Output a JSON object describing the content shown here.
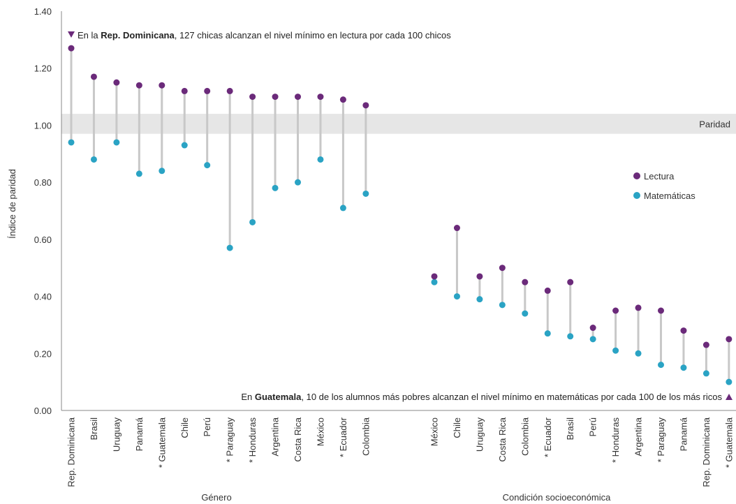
{
  "chart_data": {
    "type": "scatter",
    "ylabel": "Índice de paridad",
    "ylim": [
      0,
      1.4
    ],
    "yticks": [
      "0.00",
      "0.20",
      "0.40",
      "0.60",
      "0.80",
      "1.00",
      "1.20",
      "1.40"
    ],
    "grid": false,
    "legend_position": "right",
    "parity_band": {
      "label": "Paridad",
      "from": 0.97,
      "to": 1.04
    },
    "colors": {
      "lectura": "#6b2a7a",
      "matematicas": "#2aa3c4",
      "connector": "#c8c8c8",
      "band": "#e6e6e6",
      "axis": "#888888",
      "marker": "#6b2a7a"
    },
    "series": [
      {
        "name": "Lectura",
        "key": "lectura"
      },
      {
        "name": "Matemáticas",
        "key": "matematicas"
      }
    ],
    "groups": [
      {
        "label": "Género",
        "categories": [
          "Rep. Dominicana",
          "Brasil",
          "Uruguay",
          "Panamá",
          "* Guatemala",
          "Chile",
          "Perú",
          "* Paraguay",
          "* Honduras",
          "Argentina",
          "Costa Rica",
          "México",
          "* Ecuador",
          "Colombia"
        ],
        "lectura": [
          1.27,
          1.17,
          1.15,
          1.14,
          1.14,
          1.12,
          1.12,
          1.12,
          1.1,
          1.1,
          1.1,
          1.1,
          1.09,
          1.07
        ],
        "matematicas": [
          0.94,
          0.88,
          0.94,
          0.83,
          0.84,
          0.93,
          0.86,
          0.57,
          0.66,
          0.78,
          0.8,
          0.88,
          0.71,
          0.76
        ]
      },
      {
        "label": "Condición socioeconómica",
        "categories": [
          "México",
          "Chile",
          "Uruguay",
          "Costa Rica",
          "Colombia",
          "* Ecuador",
          "Brasil",
          "Perú",
          "* Honduras",
          "Argentina",
          "* Paraguay",
          "Panamá",
          "Rep. Dominicana",
          "* Guatemala"
        ],
        "lectura": [
          0.47,
          0.64,
          0.47,
          0.5,
          0.45,
          0.42,
          0.45,
          0.29,
          0.35,
          0.36,
          0.35,
          0.28,
          0.23,
          0.25
        ],
        "matematicas": [
          0.45,
          0.4,
          0.39,
          0.37,
          0.34,
          0.27,
          0.26,
          0.25,
          0.21,
          0.2,
          0.16,
          0.15,
          0.13,
          0.1
        ]
      }
    ],
    "annotations": {
      "top": {
        "pre": "En la ",
        "bold": "Rep. Dominicana",
        "post": ", 127 chicas alcanzan el nivel mínimo en lectura por cada 100 chicos"
      },
      "bottom": {
        "pre": "En ",
        "bold": "Guatemala",
        "post": ", 10 de los alumnos más pobres alcanzan el nivel mínimo en matemáticas por cada 100 de los más ricos"
      }
    }
  }
}
